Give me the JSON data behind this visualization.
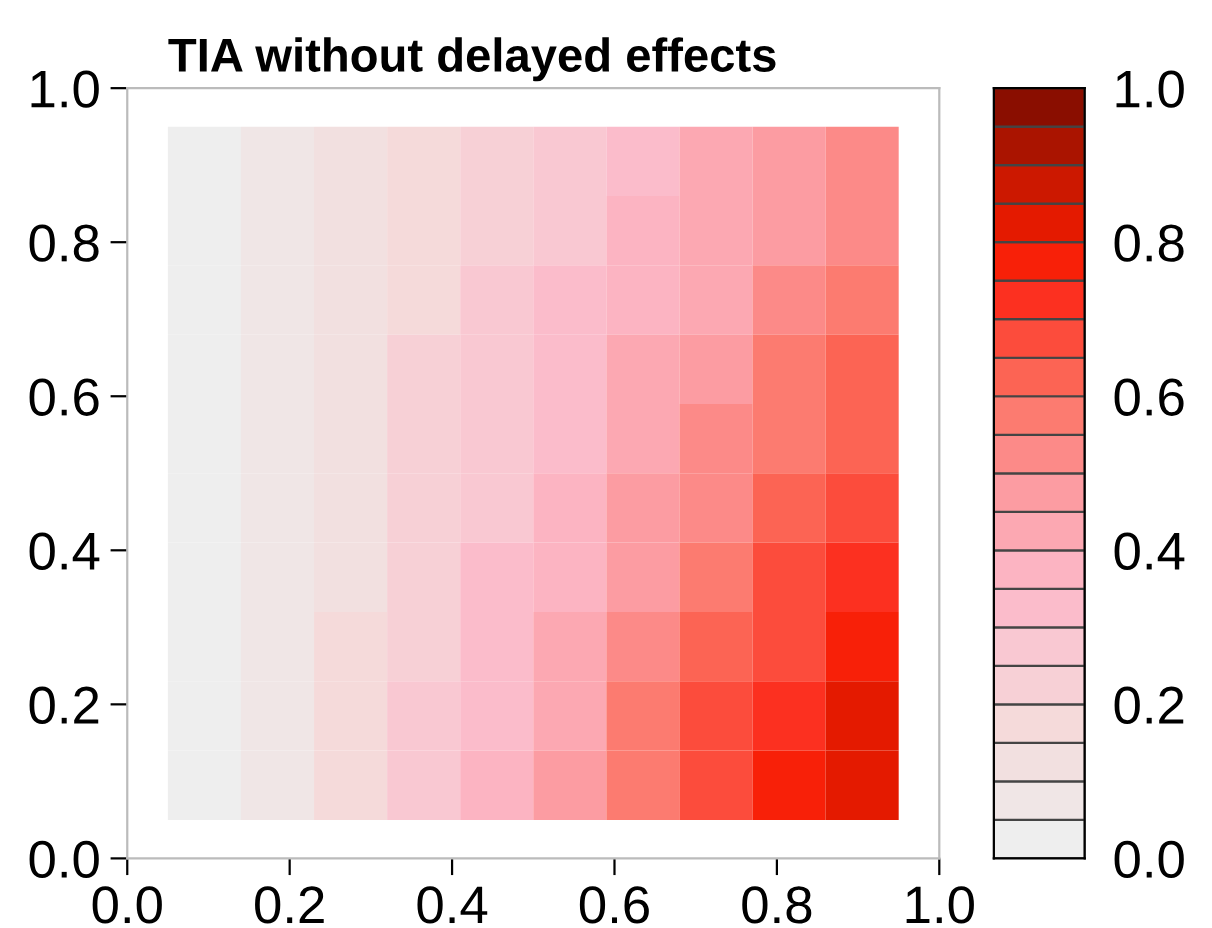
{
  "chart_data": {
    "type": "heatmap",
    "title": "TIA without delayed effects",
    "x": [
      0.095,
      0.185,
      0.275,
      0.365,
      0.455,
      0.545,
      0.635,
      0.725,
      0.815,
      0.905
    ],
    "cells": [
      [
        0.02,
        0.05,
        0.12,
        0.17,
        0.23,
        0.28,
        0.33,
        0.4,
        0.46,
        0.5
      ],
      [
        0.02,
        0.06,
        0.13,
        0.18,
        0.24,
        0.3,
        0.36,
        0.42,
        0.48,
        0.54
      ],
      [
        0.02,
        0.07,
        0.13,
        0.19,
        0.25,
        0.32,
        0.38,
        0.44,
        0.51,
        0.58
      ],
      [
        0.02,
        0.07,
        0.14,
        0.2,
        0.27,
        0.33,
        0.4,
        0.47,
        0.55,
        0.62
      ],
      [
        0.02,
        0.08,
        0.14,
        0.21,
        0.28,
        0.35,
        0.42,
        0.5,
        0.56,
        0.64
      ],
      [
        0.02,
        0.08,
        0.15,
        0.22,
        0.3,
        0.37,
        0.45,
        0.53,
        0.62,
        0.68
      ],
      [
        0.02,
        0.08,
        0.15,
        0.23,
        0.31,
        0.39,
        0.48,
        0.57,
        0.66,
        0.72
      ],
      [
        0.02,
        0.09,
        0.16,
        0.24,
        0.33,
        0.42,
        0.52,
        0.62,
        0.7,
        0.76
      ],
      [
        0.02,
        0.09,
        0.17,
        0.25,
        0.34,
        0.44,
        0.55,
        0.66,
        0.72,
        0.8
      ],
      [
        0.02,
        0.09,
        0.17,
        0.26,
        0.36,
        0.46,
        0.58,
        0.68,
        0.76,
        0.85
      ]
    ],
    "colors": [
      "#eeeeee",
      "#f0e6e6",
      "#f2e0e0",
      "#f5dada",
      "#f7d0d6",
      "#f9c8d2",
      "#fbbccb",
      "#fcb4c2",
      "#fca8b2",
      "#fc9ca2",
      "#fc8a88",
      "#fc7b70",
      "#fc6454",
      "#fc4c3c",
      "#fc3020",
      "#f82008",
      "#e41a00",
      "#cc1800",
      "#aa1400",
      "#8a0e00"
    ],
    "xlim": [
      0.0,
      1.0
    ],
    "ylim": [
      0.0,
      1.0
    ],
    "xticks": [
      {
        "value": 0.0,
        "label": "0.0"
      },
      {
        "value": 0.2,
        "label": "0.2"
      },
      {
        "value": 0.4,
        "label": "0.4"
      },
      {
        "value": 0.6,
        "label": "0.6"
      },
      {
        "value": 0.8,
        "label": "0.8"
      },
      {
        "value": 1.0,
        "label": "1.0"
      }
    ],
    "yticks": [
      {
        "value": 0.0,
        "label": "0.0"
      },
      {
        "value": 0.2,
        "label": "0.2"
      },
      {
        "value": 0.4,
        "label": "0.4"
      },
      {
        "value": 0.6,
        "label": "0.6"
      },
      {
        "value": 0.8,
        "label": "0.8"
      },
      {
        "value": 1.0,
        "label": "1.0"
      }
    ],
    "clim": [
      0.0,
      1.0
    ],
    "cticks": [
      {
        "value": 0.0,
        "label": "0.0"
      },
      {
        "value": 0.2,
        "label": "0.2"
      },
      {
        "value": 0.4,
        "label": "0.4"
      },
      {
        "value": 0.6,
        "label": "0.6"
      },
      {
        "value": 0.8,
        "label": "0.8"
      },
      {
        "value": 1.0,
        "label": "1.0"
      }
    ]
  }
}
